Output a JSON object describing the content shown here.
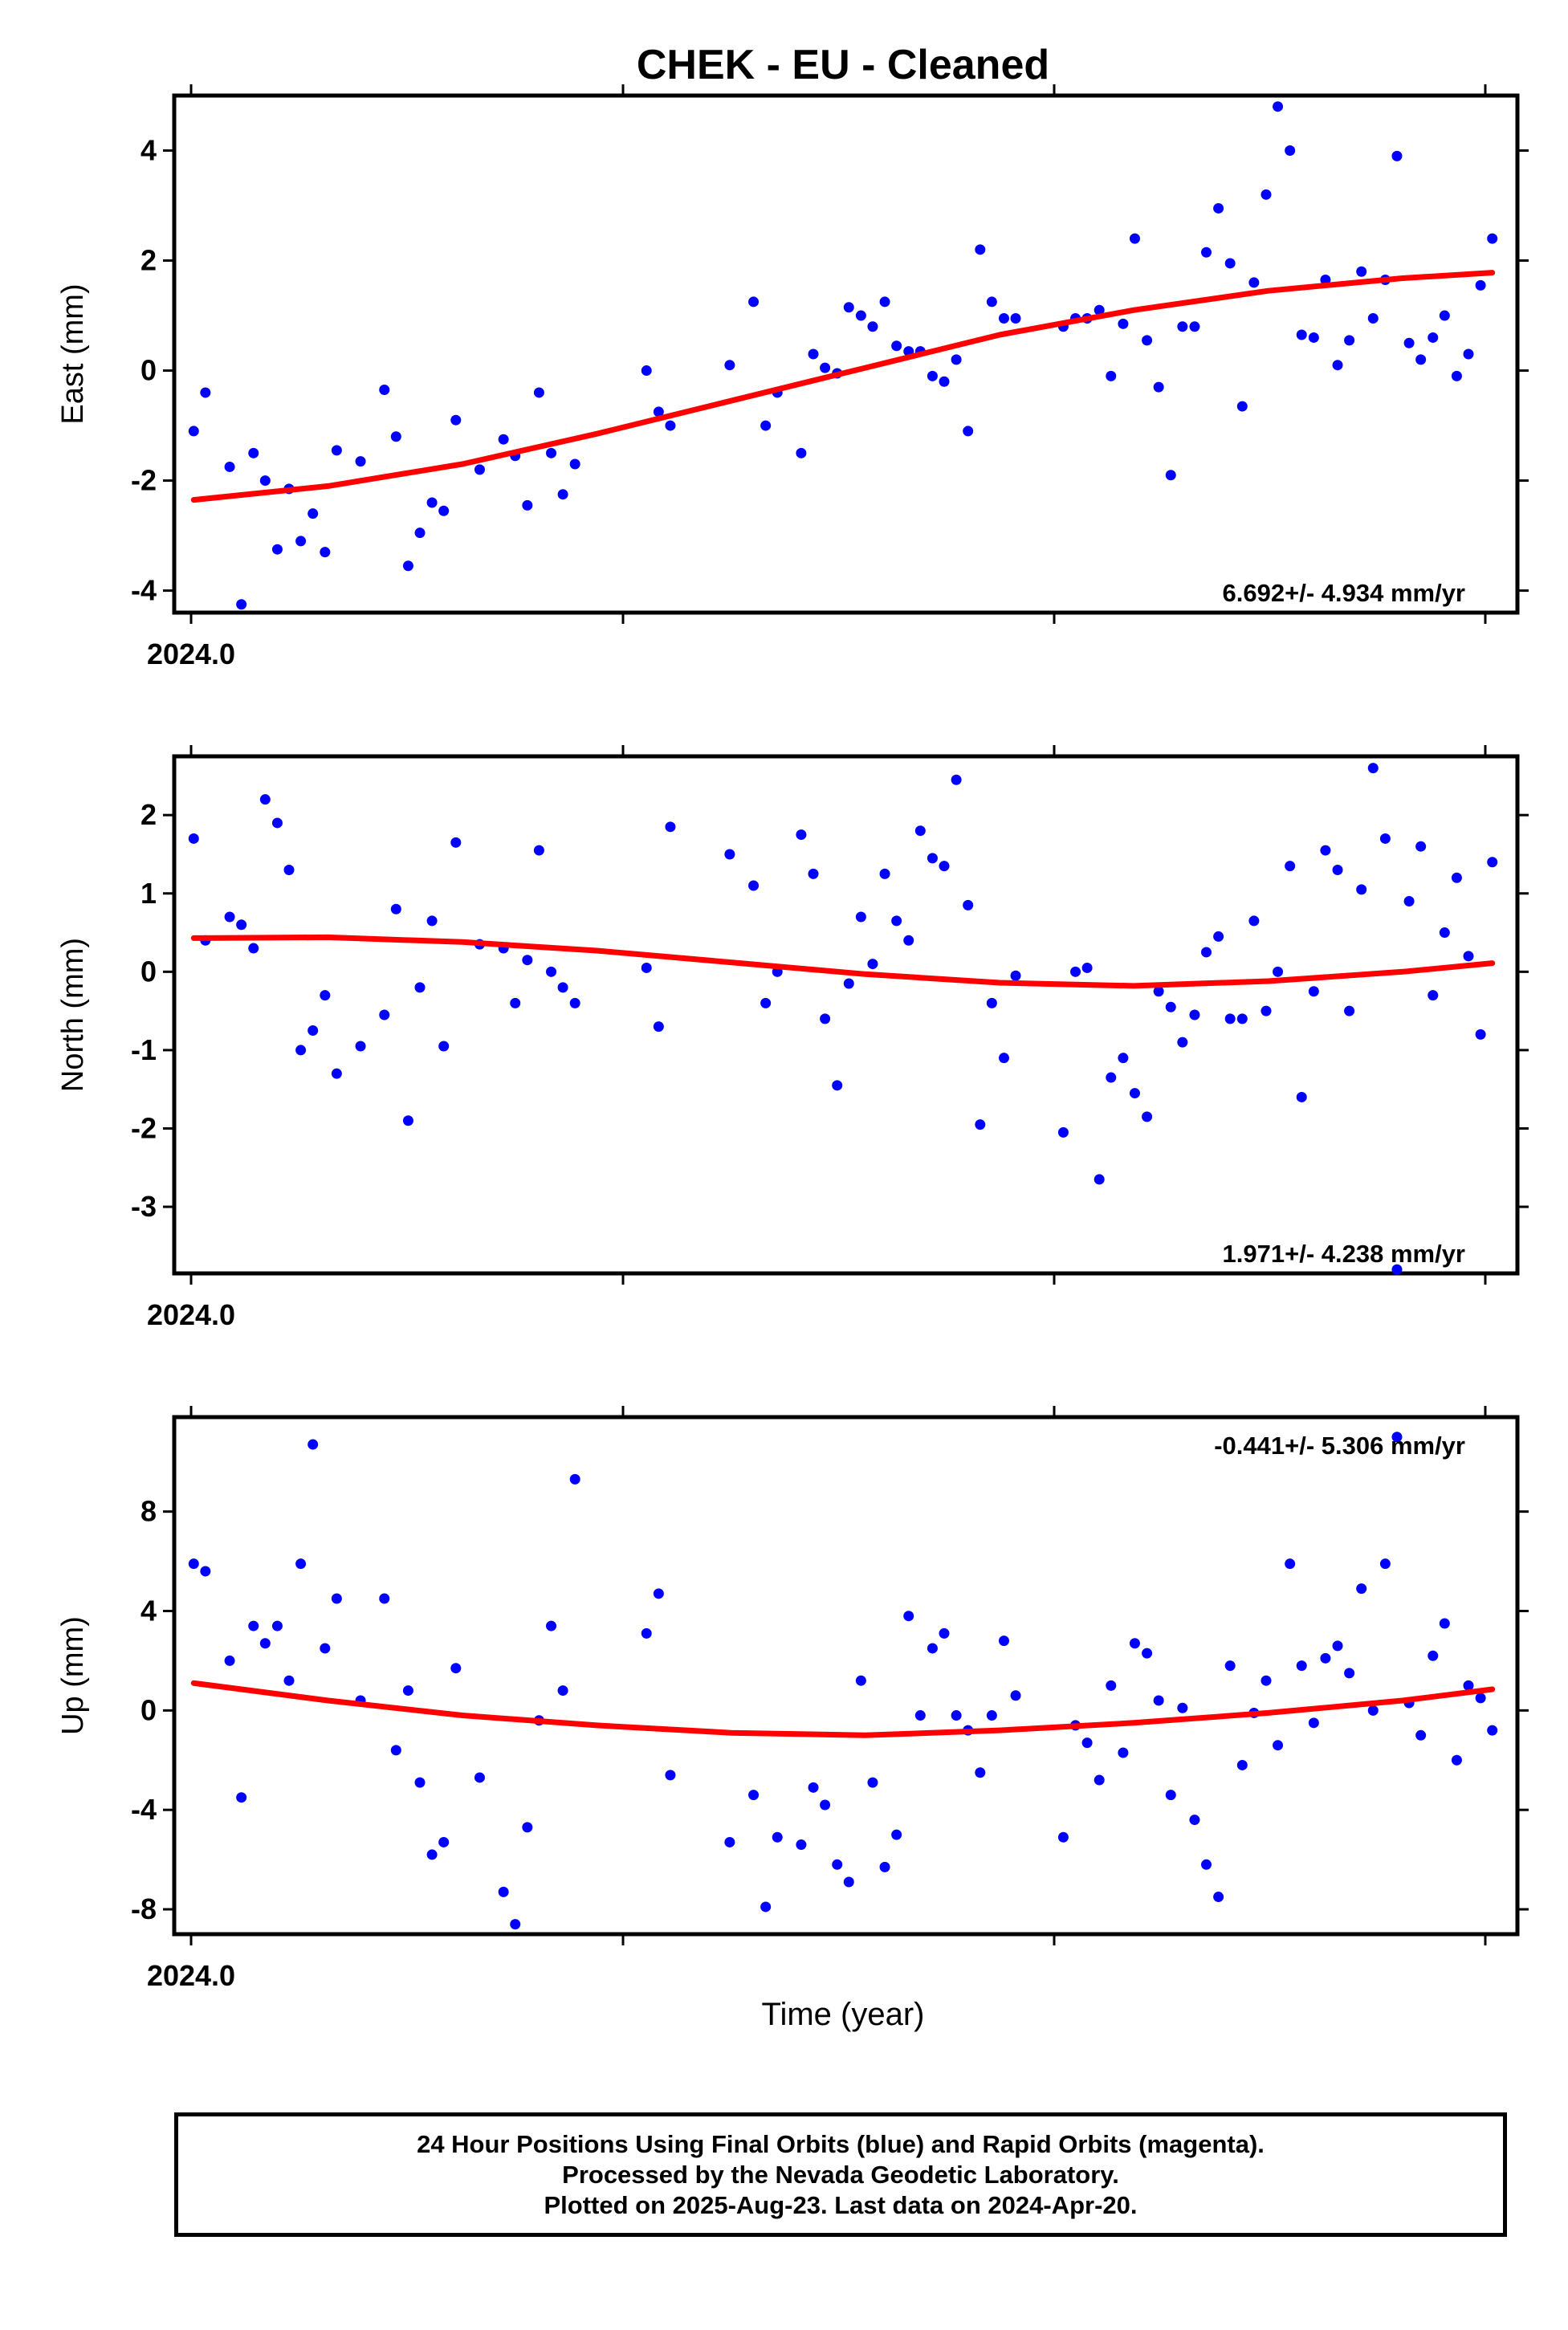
{
  "title": "CHEK  - EU - Cleaned",
  "xlabel": "Time (year)",
  "footer": {
    "line1": "24 Hour Positions Using Final Orbits (blue) and Rapid Orbits (magenta).",
    "line2": "Processed by the Nevada Geodetic Laboratory.",
    "line3": "Plotted on 2025-Aug-23. Last data on 2024-Apr-20."
  },
  "colors": {
    "points": "#0000ff",
    "fit": "#ff0000",
    "axes": "#000000"
  },
  "chart_data": [
    {
      "type": "scatter",
      "ylabel": "East (mm)",
      "rate": "6.692+/- 4.934 mm/yr",
      "rate_position": "bottom-right",
      "x_tick_label": "2024.0",
      "xlim": [
        2023.998,
        2024.308
      ],
      "ylim": [
        -4.4,
        5.0
      ],
      "yticks": [
        -4,
        -2,
        0,
        2,
        4
      ],
      "series": [
        {
          "kind": "points",
          "x": [
            2024.0025,
            2024.0052,
            2024.0108,
            2024.0135,
            2024.0163,
            2024.019,
            2024.0218,
            2024.0245,
            2024.0272,
            2024.03,
            2024.0328,
            2024.0355,
            2024.041,
            2024.0465,
            2024.0492,
            2024.052,
            2024.0547,
            2024.0575,
            2024.0602,
            2024.063,
            2024.0685,
            2024.074,
            2024.0767,
            2024.0795,
            2024.0822,
            2024.085,
            2024.0877,
            2024.0905,
            2024.107,
            2024.1098,
            2024.1125,
            2024.1262,
            2024.1317,
            2024.1345,
            2024.1372,
            2024.1427,
            2024.1455,
            2024.1482,
            2024.151,
            2024.1537,
            2024.1565,
            2024.1592,
            2024.162,
            2024.1647,
            2024.1675,
            2024.1702,
            2024.173,
            2024.1757,
            2024.1785,
            2024.1812,
            2024.184,
            2024.1867,
            2024.1895,
            2024.1922,
            2024.2032,
            2024.206,
            2024.2087,
            2024.2115,
            2024.2142,
            2024.217,
            2024.2197,
            2024.2225,
            2024.2252,
            2024.228,
            2024.2307,
            2024.2335,
            2024.2362,
            2024.239,
            2024.2417,
            2024.2445,
            2024.2472,
            2024.25,
            2024.2527,
            2024.2555,
            2024.2582,
            2024.261,
            2024.2637,
            2024.2665,
            2024.2692,
            2024.272,
            2024.2747,
            2024.2775,
            2024.2802,
            2024.283,
            2024.2857,
            2024.2885,
            2024.2912,
            2024.294,
            2024.2967,
            2024.2995,
            2024.3022
          ],
          "y": [
            -1.1,
            -0.4,
            -1.75,
            -4.25,
            -1.5,
            -2.0,
            -3.25,
            -2.15,
            -3.1,
            -2.6,
            -3.3,
            -1.45,
            -1.65,
            -0.35,
            -1.2,
            -3.55,
            -2.95,
            -2.4,
            -2.55,
            -0.9,
            -1.8,
            -1.25,
            -1.55,
            -2.45,
            -0.4,
            -1.5,
            -2.25,
            -1.7,
            0.0,
            -0.75,
            -1.0,
            0.1,
            1.25,
            -1.0,
            -0.4,
            -1.5,
            0.3,
            0.05,
            -0.05,
            1.15,
            1.0,
            0.8,
            1.25,
            0.45,
            0.35,
            0.35,
            -0.1,
            -0.2,
            0.2,
            -1.1,
            2.2,
            1.25,
            0.95,
            0.95,
            0.8,
            0.95,
            0.95,
            1.1,
            -0.1,
            0.85,
            2.4,
            0.55,
            -0.3,
            -1.9,
            0.8,
            0.8,
            2.15,
            2.95,
            1.95,
            -0.65,
            1.6,
            3.2,
            4.8,
            4.0,
            0.65,
            0.6,
            1.65,
            0.1,
            0.55,
            1.8,
            0.95,
            1.65,
            3.9,
            0.5,
            0.2,
            0.6,
            1.0,
            -0.1,
            0.3,
            1.55,
            2.4
          ]
        },
        {
          "kind": "fit",
          "x": [
            2024.0025,
            2024.0335,
            2024.0645,
            2024.0955,
            2024.1265,
            2024.1575,
            2024.1885,
            2024.2195,
            2024.2505,
            2024.2815,
            2024.3022
          ],
          "y": [
            -2.35,
            -2.1,
            -1.7,
            -1.15,
            -0.55,
            0.05,
            0.65,
            1.1,
            1.45,
            1.68,
            1.78
          ]
        }
      ]
    },
    {
      "type": "scatter",
      "ylabel": "North (mm)",
      "rate": "1.971+/- 4.238 mm/yr",
      "rate_position": "bottom-right",
      "x_tick_label": "2024.0",
      "xlim": [
        2023.998,
        2024.308
      ],
      "ylim": [
        -3.85,
        2.75
      ],
      "yticks": [
        -3,
        -2,
        -1,
        0,
        1,
        2
      ],
      "series": [
        {
          "kind": "points",
          "x": [
            2024.0025,
            2024.0052,
            2024.0108,
            2024.0135,
            2024.0163,
            2024.019,
            2024.0218,
            2024.0245,
            2024.0272,
            2024.03,
            2024.0328,
            2024.0355,
            2024.041,
            2024.0465,
            2024.0492,
            2024.052,
            2024.0547,
            2024.0575,
            2024.0602,
            2024.063,
            2024.0685,
            2024.074,
            2024.0767,
            2024.0795,
            2024.0822,
            2024.085,
            2024.0877,
            2024.0905,
            2024.107,
            2024.1098,
            2024.1125,
            2024.1262,
            2024.1317,
            2024.1345,
            2024.1372,
            2024.1427,
            2024.1455,
            2024.1482,
            2024.151,
            2024.1537,
            2024.1565,
            2024.1592,
            2024.162,
            2024.1647,
            2024.1675,
            2024.1702,
            2024.173,
            2024.1757,
            2024.1785,
            2024.1812,
            2024.184,
            2024.1867,
            2024.1895,
            2024.1922,
            2024.2032,
            2024.206,
            2024.2087,
            2024.2115,
            2024.2142,
            2024.217,
            2024.2197,
            2024.2225,
            2024.2252,
            2024.228,
            2024.2307,
            2024.2335,
            2024.2362,
            2024.239,
            2024.2417,
            2024.2445,
            2024.2472,
            2024.25,
            2024.2527,
            2024.2555,
            2024.2582,
            2024.261,
            2024.2637,
            2024.2665,
            2024.2692,
            2024.272,
            2024.2747,
            2024.2775,
            2024.2802,
            2024.283,
            2024.2857,
            2024.2885,
            2024.2912,
            2024.294,
            2024.2967,
            2024.2995,
            2024.3022
          ],
          "y": [
            1.7,
            0.4,
            0.7,
            0.6,
            0.3,
            2.2,
            1.9,
            1.3,
            -1.0,
            -0.75,
            -0.3,
            -1.3,
            -0.95,
            -0.55,
            0.8,
            -1.9,
            -0.2,
            0.65,
            -0.95,
            1.65,
            0.35,
            0.3,
            -0.4,
            0.15,
            1.55,
            0.0,
            -0.2,
            -0.4,
            0.05,
            -0.7,
            1.85,
            1.5,
            1.1,
            -0.4,
            0.0,
            1.75,
            1.25,
            -0.6,
            -1.45,
            -0.15,
            0.7,
            0.1,
            1.25,
            0.65,
            0.4,
            1.8,
            1.45,
            1.35,
            2.45,
            0.85,
            -1.95,
            -0.4,
            -1.1,
            -0.05,
            -2.05,
            0.0,
            0.05,
            -2.65,
            -1.35,
            -1.1,
            -1.55,
            -1.85,
            -0.25,
            -0.45,
            -0.9,
            -0.55,
            0.25,
            0.45,
            -0.6,
            -0.6,
            0.65,
            -0.5,
            0.0,
            1.35,
            -1.6,
            -0.25,
            1.55,
            1.3,
            -0.5,
            1.05,
            2.6,
            1.7,
            -3.8,
            0.9,
            1.6,
            -0.3,
            0.5,
            1.2,
            0.2,
            -0.8,
            1.4
          ]
        },
        {
          "kind": "fit",
          "x": [
            2024.0025,
            2024.0335,
            2024.0645,
            2024.0955,
            2024.1265,
            2024.1575,
            2024.1885,
            2024.2195,
            2024.2505,
            2024.2815,
            2024.3022
          ],
          "y": [
            0.43,
            0.44,
            0.38,
            0.27,
            0.12,
            -0.03,
            -0.14,
            -0.18,
            -0.12,
            0.0,
            0.11
          ]
        }
      ]
    },
    {
      "type": "scatter",
      "ylabel": "Up (mm)",
      "rate": "-0.441+/- 5.306 mm/yr",
      "rate_position": "top-right",
      "x_tick_label": "2024.0",
      "xlim": [
        2023.998,
        2024.308
      ],
      "ylim": [
        -9.0,
        11.8
      ],
      "yticks": [
        -8,
        -4,
        0,
        4,
        8
      ],
      "series": [
        {
          "kind": "points",
          "x": [
            2024.0025,
            2024.0052,
            2024.0108,
            2024.0135,
            2024.0163,
            2024.019,
            2024.0218,
            2024.0245,
            2024.0272,
            2024.03,
            2024.0328,
            2024.0355,
            2024.041,
            2024.0465,
            2024.0492,
            2024.052,
            2024.0547,
            2024.0575,
            2024.0602,
            2024.063,
            2024.0685,
            2024.074,
            2024.0767,
            2024.0795,
            2024.0822,
            2024.085,
            2024.0877,
            2024.0905,
            2024.107,
            2024.1098,
            2024.1125,
            2024.1262,
            2024.1317,
            2024.1345,
            2024.1372,
            2024.1427,
            2024.1455,
            2024.1482,
            2024.151,
            2024.1537,
            2024.1565,
            2024.1592,
            2024.162,
            2024.1647,
            2024.1675,
            2024.1702,
            2024.173,
            2024.1757,
            2024.1785,
            2024.1812,
            2024.184,
            2024.1867,
            2024.1895,
            2024.1922,
            2024.2032,
            2024.206,
            2024.2087,
            2024.2115,
            2024.2142,
            2024.217,
            2024.2197,
            2024.2225,
            2024.2252,
            2024.228,
            2024.2307,
            2024.2335,
            2024.2362,
            2024.239,
            2024.2417,
            2024.2445,
            2024.2472,
            2024.25,
            2024.2527,
            2024.2555,
            2024.2582,
            2024.261,
            2024.2637,
            2024.2665,
            2024.2692,
            2024.272,
            2024.2747,
            2024.2775,
            2024.2802,
            2024.283,
            2024.2857,
            2024.2885,
            2024.2912,
            2024.294,
            2024.2967,
            2024.2995,
            2024.3022
          ],
          "y": [
            5.9,
            5.6,
            2.0,
            -3.5,
            3.4,
            2.7,
            3.4,
            1.2,
            5.9,
            10.7,
            2.5,
            4.5,
            0.4,
            4.5,
            -1.6,
            0.8,
            -2.9,
            -5.8,
            -5.3,
            1.7,
            -2.7,
            -7.3,
            -8.6,
            -4.7,
            -0.4,
            3.4,
            0.8,
            9.3,
            3.1,
            4.7,
            -2.6,
            -5.3,
            -3.4,
            -7.9,
            -5.1,
            -5.4,
            -3.1,
            -3.8,
            -6.2,
            -6.9,
            1.2,
            -2.9,
            -6.3,
            -5.0,
            3.8,
            -0.2,
            2.5,
            3.1,
            -0.2,
            -0.8,
            -2.5,
            -0.2,
            2.8,
            0.6,
            -5.1,
            -0.6,
            -1.3,
            -2.8,
            1.0,
            -1.7,
            2.7,
            2.3,
            0.4,
            -3.4,
            0.1,
            -4.4,
            -6.2,
            -7.5,
            1.8,
            -2.2,
            -0.1,
            1.2,
            -1.4,
            5.9,
            1.8,
            -0.5,
            2.1,
            2.6,
            1.5,
            4.9,
            0.0,
            5.9,
            11.0,
            0.3,
            -1.0,
            2.2,
            3.5,
            -2.0,
            1.0,
            0.5,
            -0.8
          ]
        },
        {
          "kind": "fit",
          "x": [
            2024.0025,
            2024.0335,
            2024.0645,
            2024.0955,
            2024.1265,
            2024.1575,
            2024.1885,
            2024.2195,
            2024.2505,
            2024.2815,
            2024.3022
          ],
          "y": [
            1.1,
            0.4,
            -0.2,
            -0.6,
            -0.9,
            -1.0,
            -0.8,
            -0.5,
            -0.1,
            0.4,
            0.85
          ]
        }
      ]
    }
  ]
}
